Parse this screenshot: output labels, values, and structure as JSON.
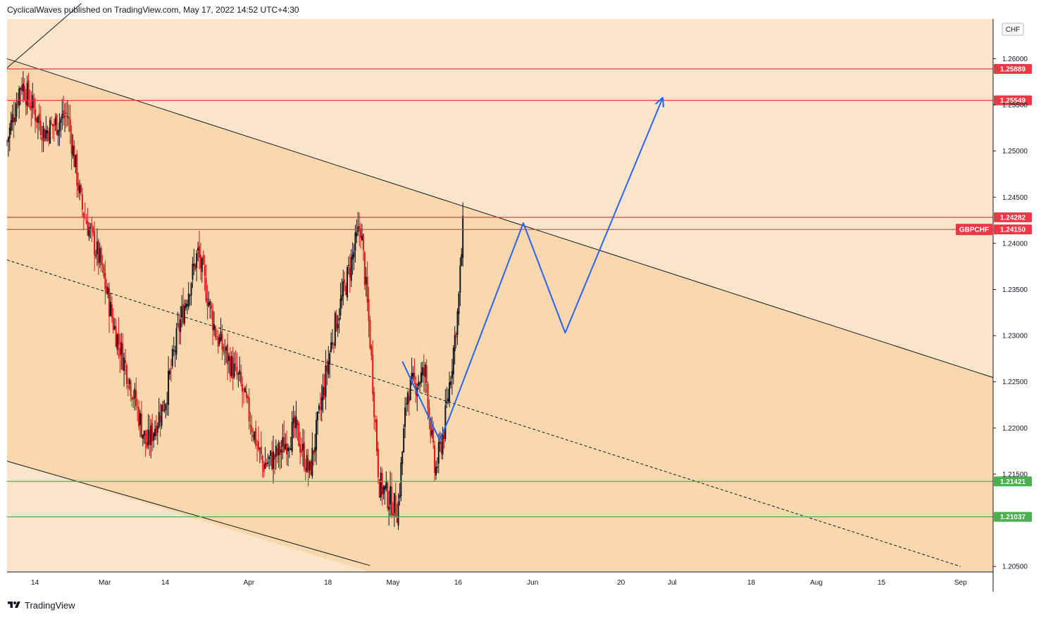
{
  "header": {
    "text": "CyclicalWaves published on TradingView.com, May 17, 2022 14:52 UTC+4:30"
  },
  "footer": {
    "brand": "TradingView",
    "logo_icon": "tradingview-logo-icon"
  },
  "colors": {
    "chart_bg": "#fbe5ca",
    "channel_fill": "#f9d8ae",
    "resistance": "#f23645",
    "support": "#4caf50",
    "projection": "#2962ff",
    "up_candle": "#131722",
    "down_candle": "#e0131a"
  },
  "chart_data": {
    "type": "candlestick",
    "symbol": "GBPCHF",
    "currency": "CHF",
    "x_ticks": [
      "14",
      "Mar",
      "14",
      "Apr",
      "18",
      "May",
      "16",
      "Jun",
      "20",
      "Jul",
      "18",
      "Aug",
      "15",
      "Sep"
    ],
    "y_ticks": [
      "1.26000",
      "1.25500",
      "1.25000",
      "1.24500",
      "1.24000",
      "1.23500",
      "1.23000",
      "1.22500",
      "1.22000",
      "1.21500",
      "1.20500"
    ],
    "ylim": [
      1.2044,
      1.2643
    ],
    "last_price": 1.2415,
    "resistance_levels": [
      {
        "label": "1.25889",
        "value": 1.25889
      },
      {
        "label": "1.25549",
        "value": 1.25549
      },
      {
        "label": "1.24282",
        "value": 1.24282
      },
      {
        "label": "1.24150",
        "value": 1.2415
      }
    ],
    "support_levels": [
      {
        "label": "1.21421",
        "value": 1.21421
      },
      {
        "label": "1.21037",
        "value": 1.21037
      }
    ],
    "channel": {
      "upper": [
        [
          "2022-02-08",
          1.26
        ],
        [
          "2022-09-01",
          1.2266
        ]
      ],
      "lower": [
        [
          "2022-02-08",
          1.2164
        ],
        [
          "2022-04-27",
          1.2051
        ]
      ],
      "middle": [
        [
          "2022-02-08",
          1.2382
        ],
        [
          "2022-09-01",
          1.205
        ]
      ]
    },
    "projection_path": [
      [
        "2022-05-04",
        1.2272
      ],
      [
        "2022-05-12",
        1.2187
      ],
      [
        "2022-05-14",
        1.221
      ],
      [
        "2022-05-30",
        1.2422
      ],
      [
        "2022-06-08",
        1.2303
      ],
      [
        "2022-06-29",
        1.2558
      ]
    ],
    "price_path": [
      [
        "2022-02-08",
        1.251
      ],
      [
        "2022-02-11",
        1.2575
      ],
      [
        "2022-02-16",
        1.252
      ],
      [
        "2022-02-21",
        1.254
      ],
      [
        "2022-02-24",
        1.244
      ],
      [
        "2022-02-28",
        1.238
      ],
      [
        "2022-03-03",
        1.231
      ],
      [
        "2022-03-07",
        1.224
      ],
      [
        "2022-03-10",
        1.218
      ],
      [
        "2022-03-14",
        1.223
      ],
      [
        "2022-03-17",
        1.231
      ],
      [
        "2022-03-21",
        1.239
      ],
      [
        "2022-03-25",
        1.23
      ],
      [
        "2022-03-30",
        1.225
      ],
      [
        "2022-04-04",
        1.216
      ],
      [
        "2022-04-07",
        1.217
      ],
      [
        "2022-04-11",
        1.22
      ],
      [
        "2022-04-14",
        1.215
      ],
      [
        "2022-04-19",
        1.23
      ],
      [
        "2022-04-22",
        1.236
      ],
      [
        "2022-04-25",
        1.242
      ],
      [
        "2022-04-27",
        1.23
      ],
      [
        "2022-04-29",
        1.214
      ],
      [
        "2022-05-03",
        1.211
      ],
      [
        "2022-05-05",
        1.224
      ],
      [
        "2022-05-09",
        1.226
      ],
      [
        "2022-05-11",
        1.215
      ],
      [
        "2022-05-13",
        1.22
      ],
      [
        "2022-05-16",
        1.233
      ],
      [
        "2022-05-17",
        1.2415
      ]
    ]
  }
}
